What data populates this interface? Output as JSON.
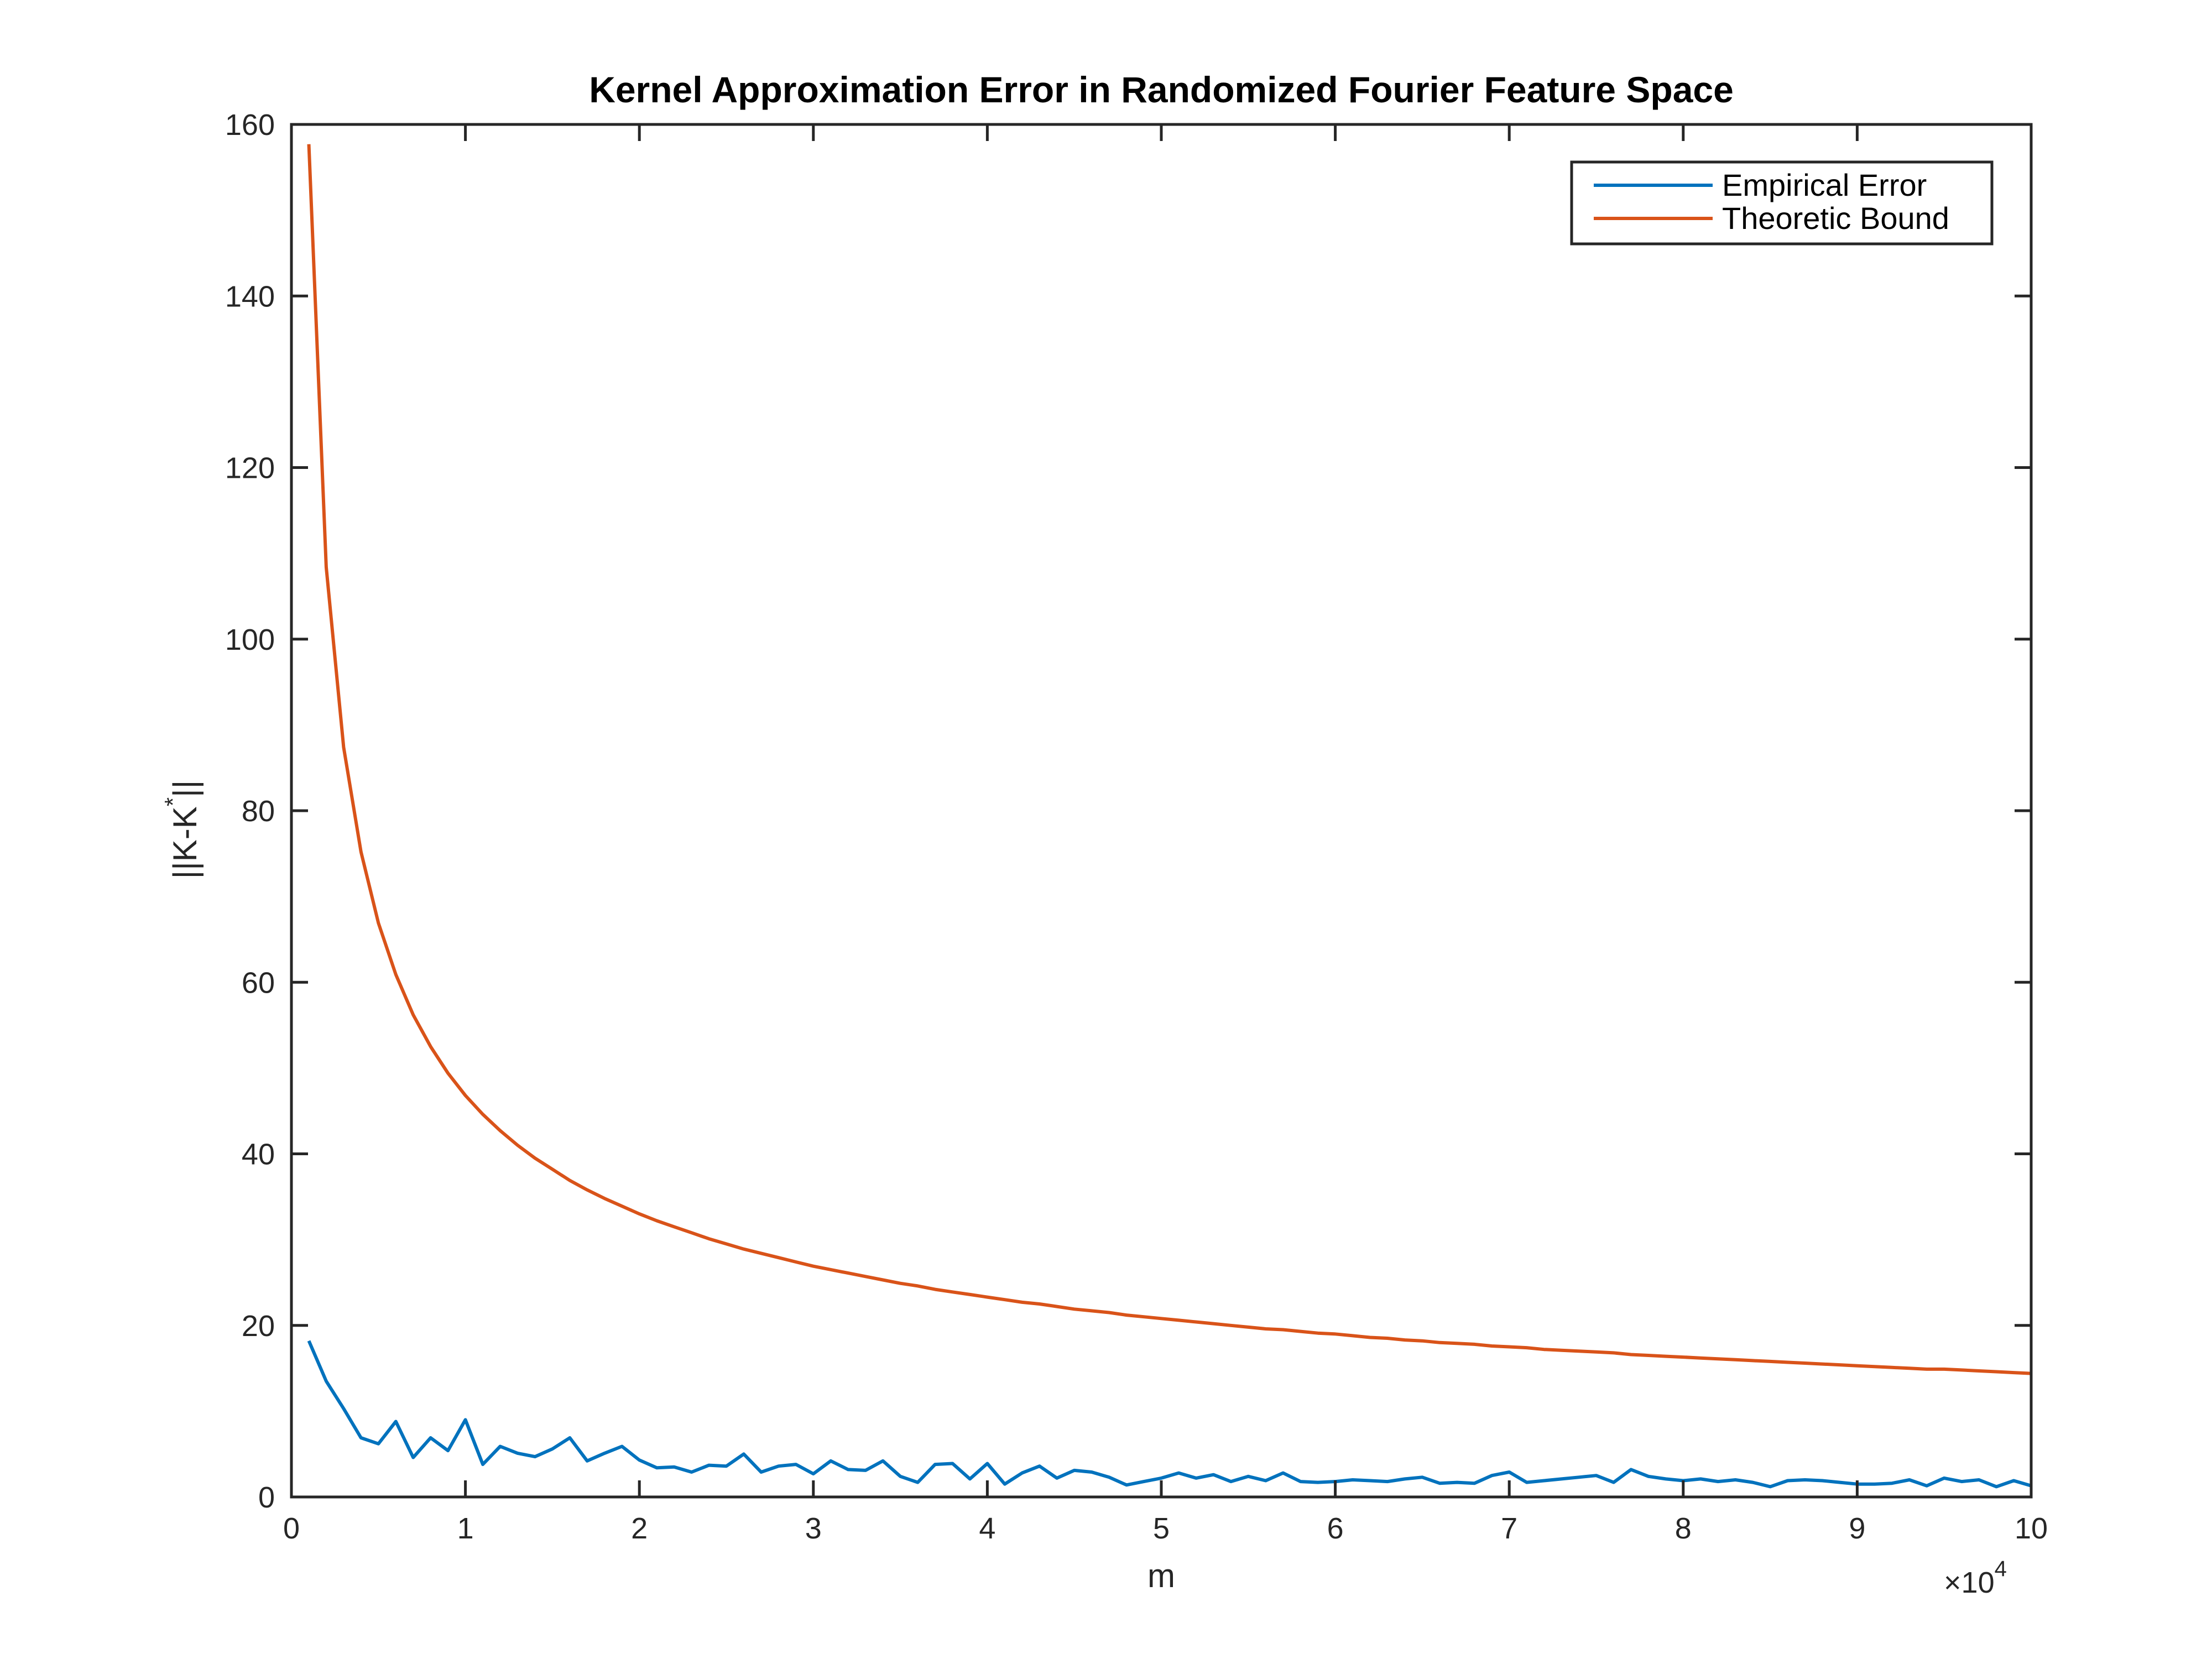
{
  "chart_data": {
    "type": "line",
    "title": "Kernel Approximation Error in Randomized Fourier Feature Space",
    "xlabel": "m",
    "ylabel": "||K-K*||",
    "ylabel_main": "||K-K",
    "ylabel_sup": "*",
    "ylabel_end": "||",
    "x_multiplier_base": "×10",
    "x_multiplier_exp": "4",
    "xlim": [
      0,
      10
    ],
    "ylim": [
      0,
      160
    ],
    "xticks": [
      "0",
      "1",
      "2",
      "3",
      "4",
      "5",
      "6",
      "7",
      "8",
      "9",
      "10"
    ],
    "yticks": [
      "0",
      "20",
      "40",
      "60",
      "80",
      "100",
      "120",
      "140",
      "160"
    ],
    "legend_position": "top-right",
    "grid": false,
    "series": [
      {
        "name": "Empirical Error",
        "color": "#0072BD",
        "x": [
          0.1,
          0.2,
          0.3,
          0.4,
          0.5,
          0.6,
          0.7,
          0.8,
          0.9,
          1.0,
          1.1,
          1.2,
          1.3,
          1.4,
          1.5,
          1.6,
          1.7,
          1.8,
          1.9,
          2.0,
          2.1,
          2.2,
          2.3,
          2.4,
          2.5,
          2.6,
          2.7,
          2.8,
          2.9,
          3.0,
          3.1,
          3.2,
          3.3,
          3.4,
          3.5,
          3.6,
          3.7,
          3.8,
          3.9,
          4.0,
          4.1,
          4.2,
          4.3,
          4.4,
          4.5,
          4.6,
          4.7,
          4.8,
          4.9,
          5.0,
          5.1,
          5.2,
          5.3,
          5.4,
          5.5,
          5.6,
          5.7,
          5.8,
          5.9,
          6.0,
          6.1,
          6.2,
          6.3,
          6.4,
          6.5,
          6.6,
          6.7,
          6.8,
          6.9,
          7.0,
          7.1,
          7.2,
          7.3,
          7.4,
          7.5,
          7.6,
          7.7,
          7.8,
          7.9,
          8.0,
          8.1,
          8.2,
          8.3,
          8.4,
          8.5,
          8.6,
          8.7,
          8.8,
          8.9,
          9.0,
          9.1,
          9.2,
          9.3,
          9.4,
          9.5,
          9.6,
          9.7,
          9.8,
          9.9,
          10.0
        ],
        "values": [
          18.2,
          13.5,
          10.3,
          6.9,
          6.2,
          8.8,
          4.6,
          6.9,
          5.4,
          9.0,
          3.8,
          5.9,
          5.1,
          4.7,
          5.6,
          6.9,
          4.2,
          5.1,
          5.9,
          4.3,
          3.4,
          3.5,
          2.9,
          3.7,
          3.6,
          5.0,
          2.9,
          3.6,
          3.8,
          2.7,
          4.2,
          3.2,
          3.1,
          4.2,
          2.4,
          1.7,
          3.8,
          3.9,
          2.1,
          3.9,
          1.5,
          2.8,
          3.6,
          2.2,
          3.1,
          2.9,
          2.3,
          1.4,
          1.8,
          2.2,
          2.8,
          2.2,
          2.6,
          1.8,
          2.4,
          1.9,
          2.8,
          1.8,
          1.7,
          1.8,
          2.0,
          1.9,
          1.8,
          2.1,
          2.3,
          1.6,
          1.7,
          1.6,
          2.5,
          2.9,
          1.7,
          1.9,
          2.1,
          2.3,
          2.5,
          1.7,
          3.2,
          2.4,
          2.1,
          1.9,
          2.1,
          1.8,
          2.0,
          1.7,
          1.2,
          1.9,
          2.0,
          1.9,
          1.7,
          1.5,
          1.5,
          1.6,
          2.0,
          1.3,
          2.2,
          1.8,
          2.0,
          1.2,
          1.9,
          1.3
        ]
      },
      {
        "name": "Theoretic Bound",
        "color": "#D95319",
        "x": [
          0.1,
          0.2,
          0.3,
          0.4,
          0.5,
          0.6,
          0.7,
          0.8,
          0.9,
          1.0,
          1.1,
          1.2,
          1.3,
          1.4,
          1.5,
          1.6,
          1.7,
          1.8,
          1.9,
          2.0,
          2.1,
          2.2,
          2.3,
          2.4,
          2.5,
          2.6,
          2.7,
          2.8,
          2.9,
          3.0,
          3.1,
          3.2,
          3.3,
          3.4,
          3.5,
          3.6,
          3.7,
          3.8,
          3.9,
          4.0,
          4.1,
          4.2,
          4.3,
          4.4,
          4.5,
          4.6,
          4.7,
          4.8,
          4.9,
          5.0,
          5.1,
          5.2,
          5.3,
          5.4,
          5.5,
          5.6,
          5.7,
          5.8,
          5.9,
          6.0,
          6.1,
          6.2,
          6.3,
          6.4,
          6.5,
          6.6,
          6.7,
          6.8,
          6.9,
          7.0,
          7.1,
          7.2,
          7.3,
          7.4,
          7.5,
          7.6,
          7.7,
          7.8,
          7.9,
          8.0,
          8.1,
          8.2,
          8.3,
          8.4,
          8.5,
          8.6,
          8.7,
          8.8,
          8.9,
          9.0,
          9.1,
          9.2,
          9.3,
          9.4,
          9.5,
          9.6,
          9.7,
          9.8,
          9.9,
          10.0
        ],
        "values": [
          157.7,
          108.4,
          87.4,
          75.2,
          66.9,
          60.9,
          56.2,
          52.5,
          49.4,
          46.8,
          44.6,
          42.7,
          41.0,
          39.5,
          38.2,
          36.9,
          35.8,
          34.8,
          33.9,
          33.0,
          32.2,
          31.5,
          30.8,
          30.1,
          29.5,
          28.9,
          28.4,
          27.9,
          27.4,
          26.9,
          26.5,
          26.1,
          25.7,
          25.3,
          24.9,
          24.6,
          24.2,
          23.9,
          23.6,
          23.3,
          23.0,
          22.7,
          22.5,
          22.2,
          21.9,
          21.7,
          21.5,
          21.2,
          21.0,
          20.8,
          20.6,
          20.4,
          20.2,
          20.0,
          19.8,
          19.6,
          19.5,
          19.3,
          19.1,
          19.0,
          18.8,
          18.6,
          18.5,
          18.3,
          18.2,
          18.0,
          17.9,
          17.8,
          17.6,
          17.5,
          17.4,
          17.2,
          17.1,
          17.0,
          16.9,
          16.8,
          16.6,
          16.5,
          16.4,
          16.3,
          16.2,
          16.1,
          16.0,
          15.9,
          15.8,
          15.7,
          15.6,
          15.5,
          15.4,
          15.3,
          15.2,
          15.1,
          15.0,
          14.9,
          14.9,
          14.8,
          14.7,
          14.6,
          14.5,
          14.4
        ]
      }
    ]
  }
}
